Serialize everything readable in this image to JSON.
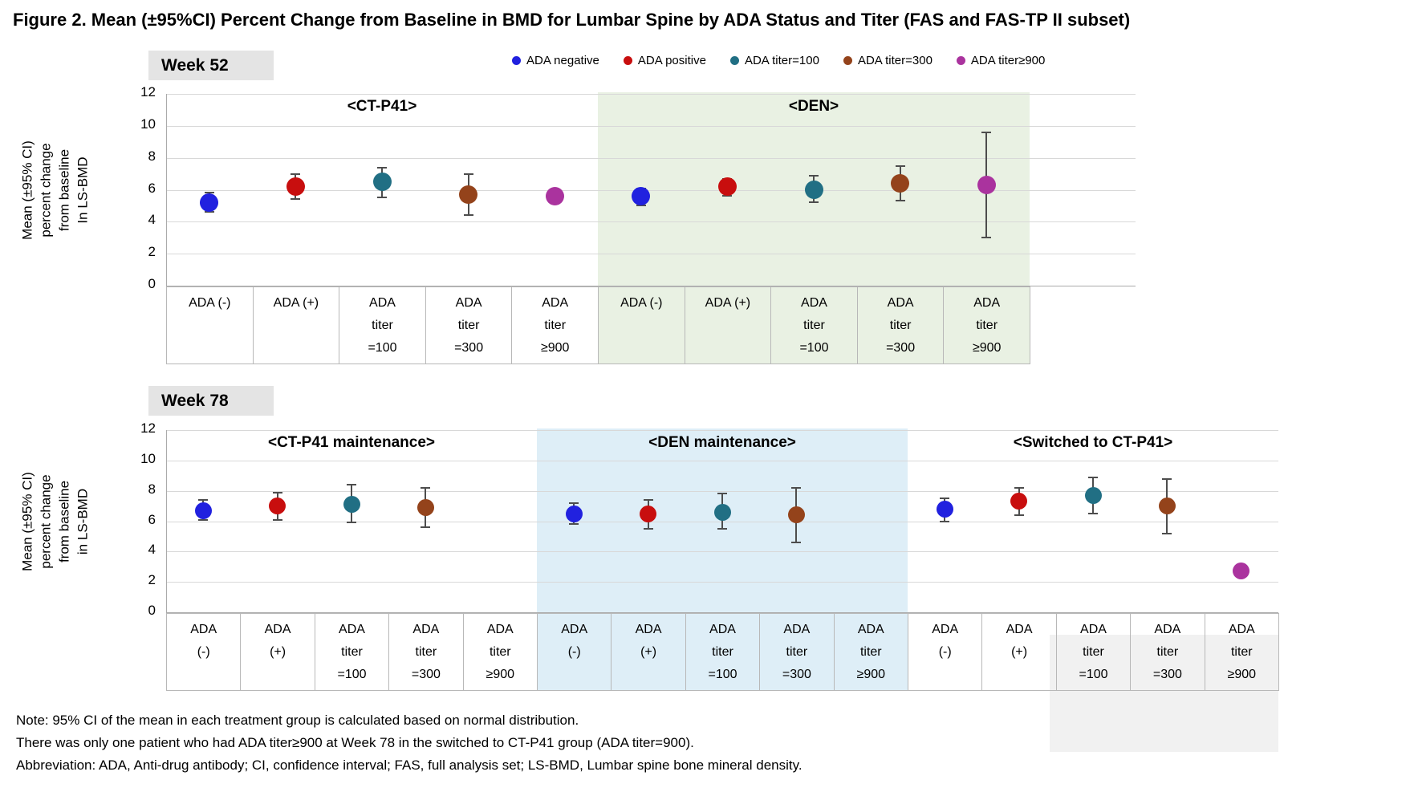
{
  "title": "Figure 2. Mean (±95%CI) Percent Change from Baseline in BMD for Lumbar Spine by ADA Status and Titer (FAS and FAS-TP II subset)",
  "legend": [
    {
      "label": "ADA negative",
      "color": "#2121DF"
    },
    {
      "label": "ADA positive",
      "color": "#C80E0E"
    },
    {
      "label": "ADA titer=100",
      "color": "#216F84"
    },
    {
      "label": "ADA titer=300",
      "color": "#94431B"
    },
    {
      "label": "ADA titer≥900",
      "color": "#AA339E"
    }
  ],
  "notes": [
    "Note: 95% CI of the mean in each treatment group is calculated based on normal distribution.",
    "There was only one patient who had ADA titer≥900 at Week 78 in the switched to CT-P41 group (ADA titer=900).",
    "Abbreviation: ADA, Anti-drug antibody; CI, confidence interval; FAS, full analysis set; LS-BMD, Lumbar spine bone mineral density."
  ],
  "chart_data": [
    {
      "id": "w52",
      "type": "scatter",
      "panel_label": "Week 52",
      "ylabel_lines": [
        "Mean (±95% CI)",
        "percent change",
        "from baseline",
        "In LS-BMD"
      ],
      "ylim": [
        0,
        12
      ],
      "ytick_step": 2,
      "grid": true,
      "legend_position": "top",
      "groups": [
        {
          "label": "<CT-P41>",
          "shade_color": null,
          "categories": [
            [
              "ADA (-)"
            ],
            [
              "ADA (+)"
            ],
            [
              "ADA",
              "titer",
              "=100"
            ],
            [
              "ADA",
              "titer",
              "=300"
            ],
            [
              "ADA",
              "titer",
              "≥900"
            ]
          ],
          "points": [
            {
              "series": "ADA negative",
              "mean": 5.2,
              "lo": 4.6,
              "hi": 5.8
            },
            {
              "series": "ADA positive",
              "mean": 6.2,
              "lo": 5.4,
              "hi": 7.0
            },
            {
              "series": "ADA titer=100",
              "mean": 6.5,
              "lo": 5.5,
              "hi": 7.4
            },
            {
              "series": "ADA titer=300",
              "mean": 5.7,
              "lo": 4.4,
              "hi": 7.0
            },
            {
              "series": "ADA titer≥900",
              "mean": 5.6,
              "lo": null,
              "hi": null
            }
          ]
        },
        {
          "label": "<DEN>",
          "shade_color": "#E9F1E3",
          "categories": [
            [
              "ADA (-)"
            ],
            [
              "ADA (+)"
            ],
            [
              "ADA",
              "titer",
              "=100"
            ],
            [
              "ADA",
              "titer",
              "=300"
            ],
            [
              "ADA",
              "titer",
              "≥900"
            ]
          ],
          "points": [
            {
              "series": "ADA negative",
              "mean": 5.6,
              "lo": 5.0,
              "hi": 6.1
            },
            {
              "series": "ADA positive",
              "mean": 6.2,
              "lo": 5.6,
              "hi": 6.7
            },
            {
              "series": "ADA titer=100",
              "mean": 6.0,
              "lo": 5.2,
              "hi": 6.9
            },
            {
              "series": "ADA titer=300",
              "mean": 6.4,
              "lo": 5.3,
              "hi": 7.5
            },
            {
              "series": "ADA titer≥900",
              "mean": 6.3,
              "lo": 3.0,
              "hi": 9.6
            }
          ]
        }
      ]
    },
    {
      "id": "w78",
      "type": "scatter",
      "panel_label": "Week 78",
      "ylabel_lines": [
        "Mean (±95% CI)",
        "percent change",
        "from baseline",
        "in LS-BMD"
      ],
      "ylim": [
        0,
        12
      ],
      "ytick_step": 2,
      "grid": true,
      "groups": [
        {
          "label": "<CT-P41 maintenance>",
          "shade_color": null,
          "categories": [
            [
              "ADA",
              "(-)"
            ],
            [
              "ADA",
              "(+)"
            ],
            [
              "ADA",
              "titer",
              "=100"
            ],
            [
              "ADA",
              "titer",
              "=300"
            ],
            [
              "ADA",
              "titer",
              "≥900"
            ]
          ],
          "points": [
            {
              "series": "ADA negative",
              "mean": 6.7,
              "lo": 6.1,
              "hi": 7.4
            },
            {
              "series": "ADA positive",
              "mean": 7.0,
              "lo": 6.1,
              "hi": 7.9
            },
            {
              "series": "ADA titer=100",
              "mean": 7.1,
              "lo": 5.9,
              "hi": 8.4
            },
            {
              "series": "ADA titer=300",
              "mean": 6.9,
              "lo": 5.6,
              "hi": 8.2
            },
            null
          ]
        },
        {
          "label": "<DEN maintenance>",
          "shade_color": "#DEEEF7",
          "categories": [
            [
              "ADA",
              "(-)"
            ],
            [
              "ADA",
              "(+)"
            ],
            [
              "ADA",
              "titer",
              "=100"
            ],
            [
              "ADA",
              "titer",
              "=300"
            ],
            [
              "ADA",
              "titer",
              "≥900"
            ]
          ],
          "points": [
            {
              "series": "ADA negative",
              "mean": 6.5,
              "lo": 5.8,
              "hi": 7.2
            },
            {
              "series": "ADA positive",
              "mean": 6.5,
              "lo": 5.5,
              "hi": 7.4
            },
            {
              "series": "ADA titer=100",
              "mean": 6.6,
              "lo": 5.5,
              "hi": 7.8
            },
            {
              "series": "ADA titer=300",
              "mean": 6.4,
              "lo": 4.6,
              "hi": 8.2
            },
            null
          ]
        },
        {
          "label": "<Switched to CT-P41>",
          "shade_color": null,
          "categories": [
            [
              "ADA",
              "(-)"
            ],
            [
              "ADA",
              "(+)"
            ],
            [
              "ADA",
              "titer",
              "=100"
            ],
            [
              "ADA",
              "titer",
              "=300"
            ],
            [
              "ADA",
              "titer",
              "≥900"
            ]
          ],
          "points": [
            {
              "series": "ADA negative",
              "mean": 6.8,
              "lo": 6.0,
              "hi": 7.5
            },
            {
              "series": "ADA positive",
              "mean": 7.3,
              "lo": 6.4,
              "hi": 8.2
            },
            {
              "series": "ADA titer=100",
              "mean": 7.7,
              "lo": 6.5,
              "hi": 8.9
            },
            {
              "series": "ADA titer=300",
              "mean": 7.0,
              "lo": 5.2,
              "hi": 8.8
            },
            {
              "series": "ADA titer≥900",
              "mean": 2.7,
              "lo": null,
              "hi": null
            }
          ]
        }
      ]
    }
  ]
}
